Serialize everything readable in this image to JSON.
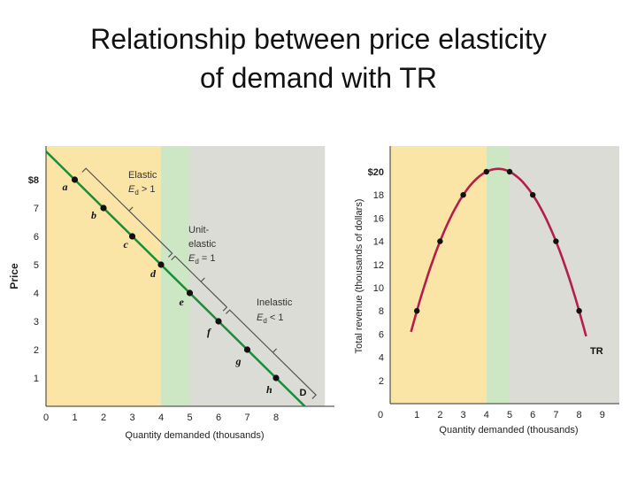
{
  "slide": {
    "title_line1": "Relationship between price elasticity",
    "title_line2": "of demand with TR"
  },
  "colors": {
    "elastic_zone": "#fbe5a6",
    "unit_zone": "#cde6c4",
    "inelastic_zone": "#dcdcd6",
    "demand_line": "#1a8c3a",
    "tr_curve": "#b31e4a",
    "points": "#111111"
  },
  "chart_data": [
    {
      "type": "line",
      "xlabel": "Quantity demanded (thousands)",
      "ylabel": "Price",
      "xlim": [
        0,
        10
      ],
      "ylim": [
        0,
        9
      ],
      "x_ticks": [
        "0",
        "1",
        "2",
        "3",
        "4",
        "5",
        "6",
        "7",
        "8"
      ],
      "y_ticks": [
        "1",
        "2",
        "3",
        "4",
        "5",
        "6",
        "7",
        "$8"
      ],
      "series": [
        {
          "name": "D",
          "x": [
            0,
            9
          ],
          "y": [
            9,
            0
          ]
        }
      ],
      "points": [
        {
          "label": "a",
          "x": 1,
          "y": 8
        },
        {
          "label": "b",
          "x": 2,
          "y": 7
        },
        {
          "label": "c",
          "x": 3,
          "y": 6
        },
        {
          "label": "d",
          "x": 4,
          "y": 5
        },
        {
          "label": "e",
          "x": 5,
          "y": 4
        },
        {
          "label": "f",
          "x": 6,
          "y": 3
        },
        {
          "label": "g",
          "x": 7,
          "y": 2
        },
        {
          "label": "h",
          "x": 8,
          "y": 1
        }
      ],
      "zones": {
        "elastic": [
          0,
          4
        ],
        "unit": [
          4,
          5
        ],
        "inelastic": [
          5,
          9.7
        ]
      },
      "annotations": {
        "elastic": {
          "line1": "Elastic",
          "line2": "Ed > 1"
        },
        "unit": {
          "line1": "Unit-",
          "line2": "elastic",
          "line3": "Ed = 1"
        },
        "inelastic": {
          "line1": "Inelastic",
          "line2": "Ed < 1"
        }
      }
    },
    {
      "type": "line",
      "xlabel": "Quantity demanded (thousands)",
      "ylabel": "Total revenue (thousands of dollars)",
      "xlim": [
        0,
        9.5
      ],
      "ylim": [
        0,
        21
      ],
      "x_ticks": [
        "0",
        "1",
        "2",
        "3",
        "4",
        "5",
        "6",
        "7",
        "8",
        "9"
      ],
      "y_ticks": [
        "2",
        "4",
        "6",
        "8",
        "10",
        "12",
        "14",
        "16",
        "18",
        "$20"
      ],
      "series": [
        {
          "name": "TR",
          "x": [
            1,
            2,
            3,
            4,
            5,
            6,
            7,
            8
          ],
          "y": [
            8,
            14,
            18,
            20,
            20,
            18,
            14,
            8
          ]
        }
      ],
      "zones": {
        "elastic": [
          0,
          4
        ],
        "unit": [
          4,
          5
        ],
        "inelastic": [
          5,
          9.5
        ]
      }
    }
  ]
}
